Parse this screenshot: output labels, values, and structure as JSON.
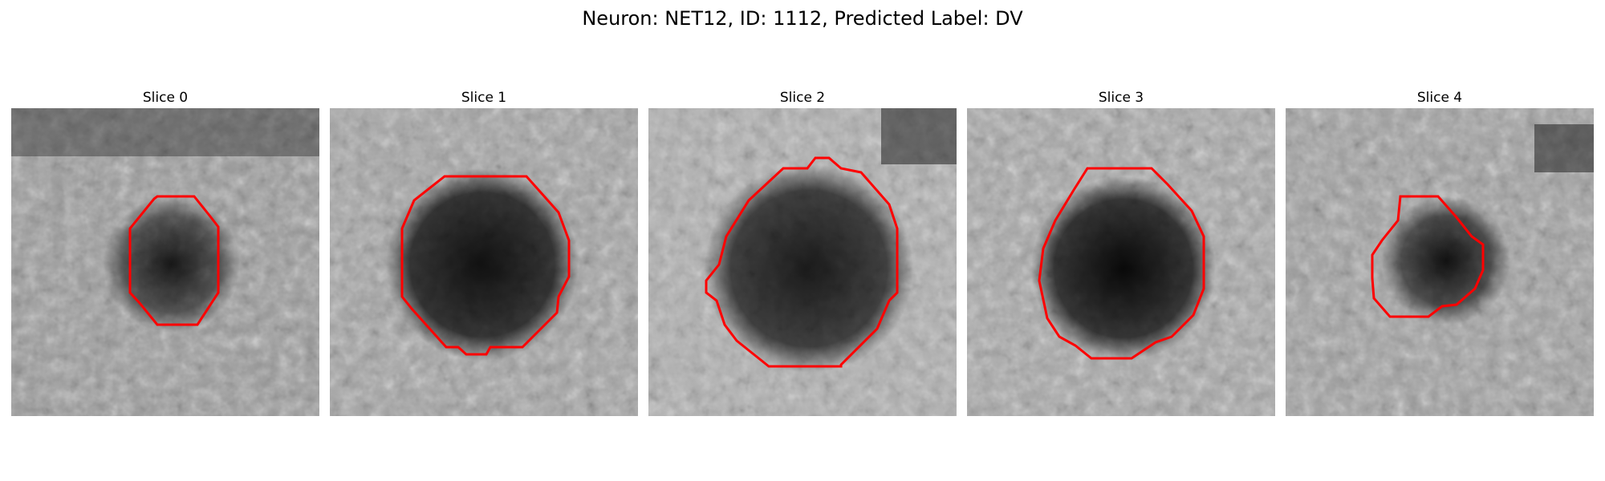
{
  "figure": {
    "title": "Neuron: NET12, ID: 1112, Predicted Label: DV",
    "contour_color": "#ff0000"
  },
  "panels": [
    {
      "title": "Slice 0"
    },
    {
      "title": "Slice 1"
    },
    {
      "title": "Slice 2"
    },
    {
      "title": "Slice 3"
    },
    {
      "title": "Slice 4"
    }
  ]
}
